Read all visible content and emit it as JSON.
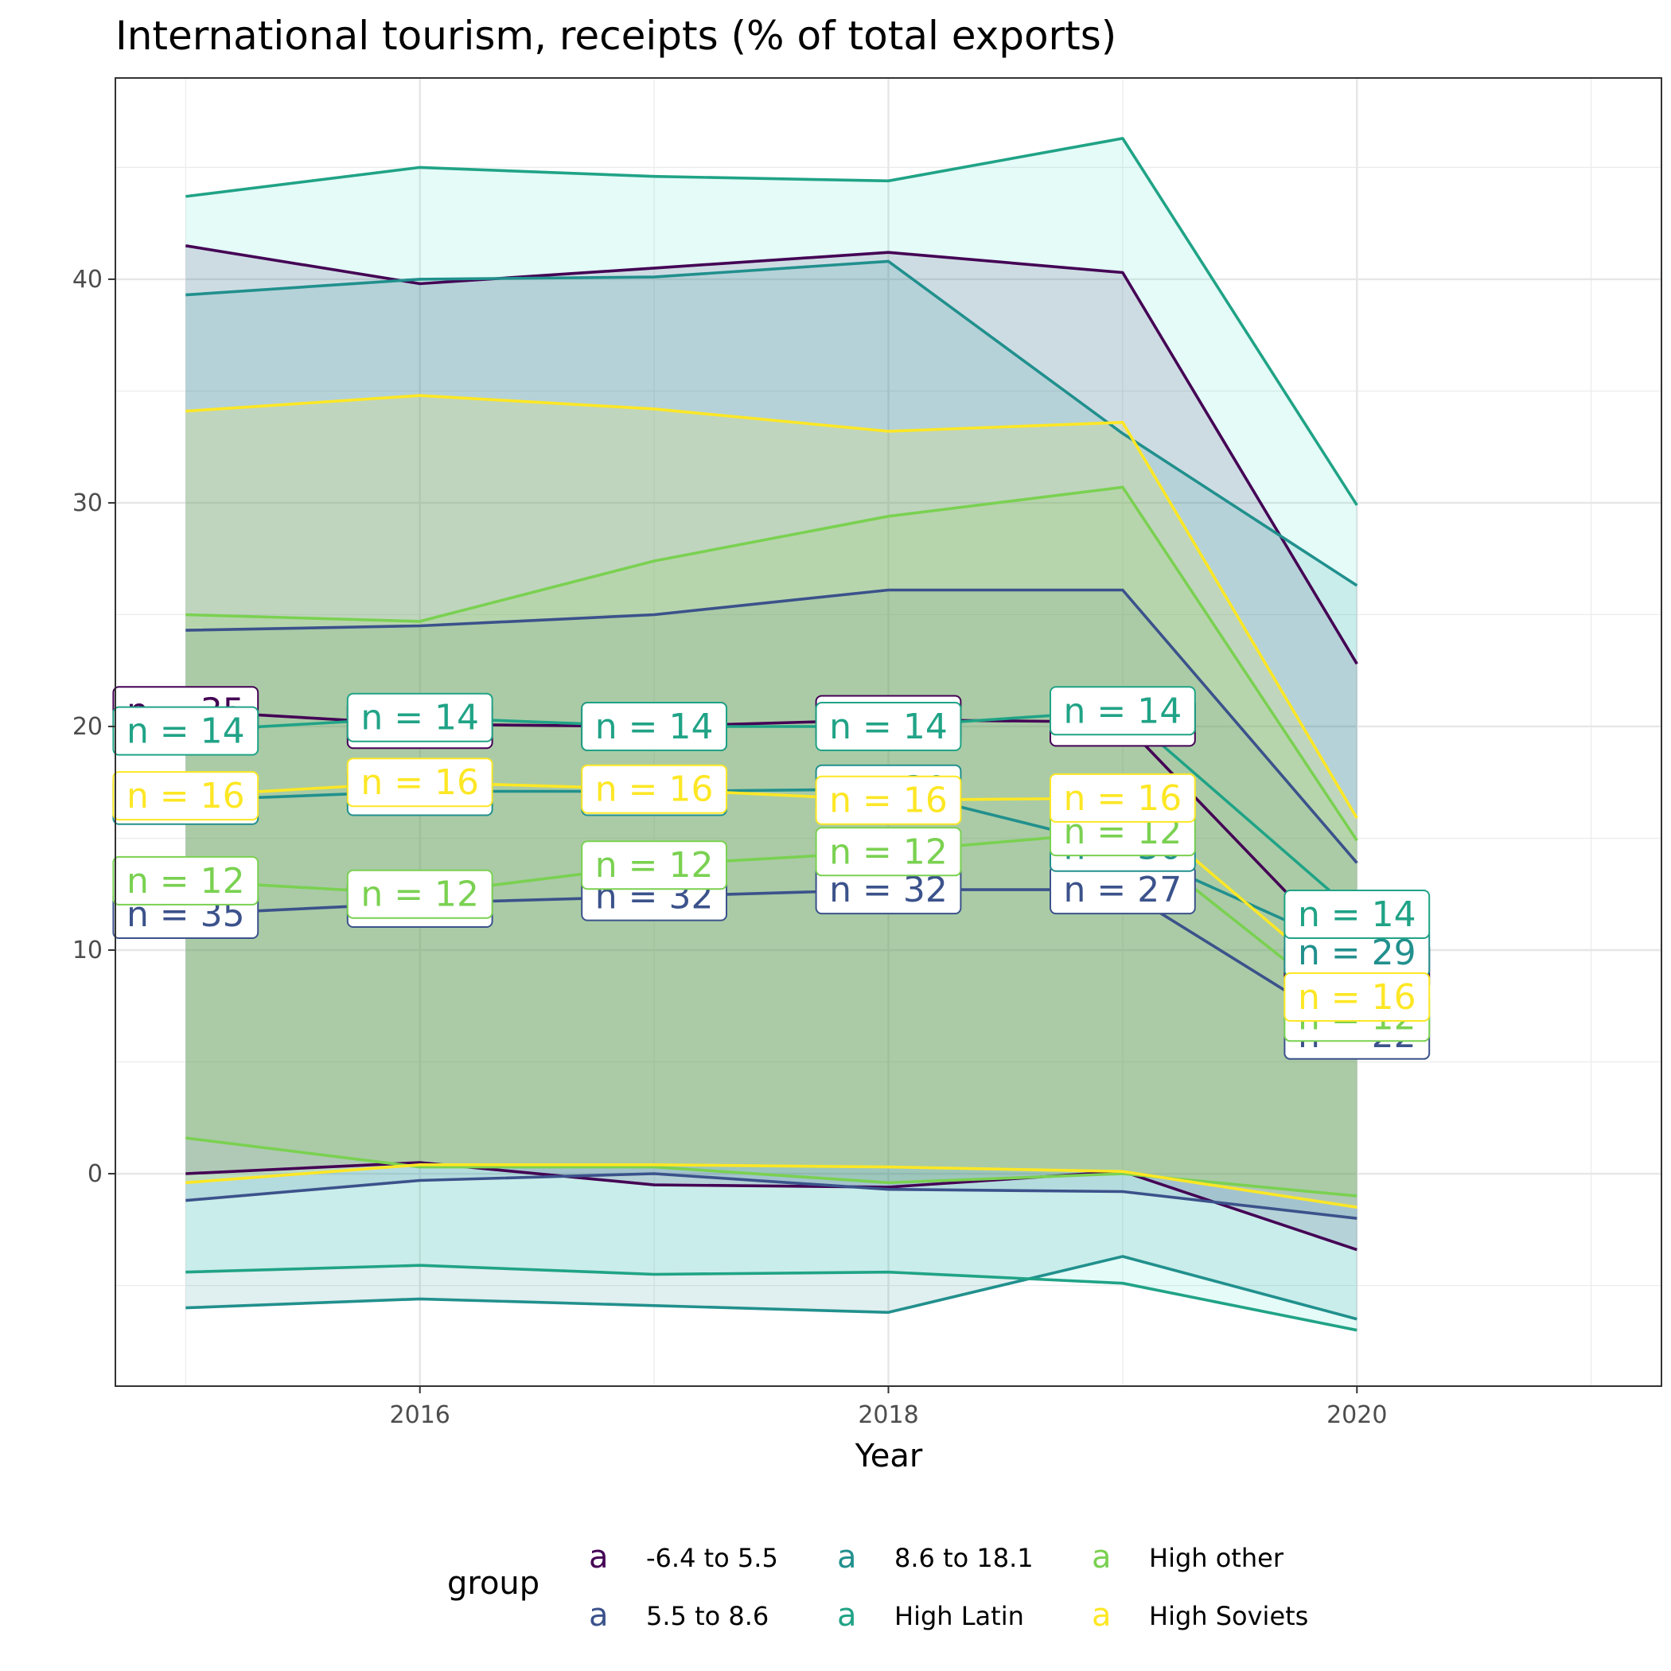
{
  "chart_data": {
    "type": "area",
    "title": "International tourism, receipts (% of total exports)",
    "xlabel": "Year",
    "ylabel": "",
    "xlim": [
      2014.7,
      2021.3
    ],
    "ylim": [
      -9.5,
      49
    ],
    "x_ticks": [
      2016,
      2018,
      2020
    ],
    "x_tick_labels": [
      "2016",
      "2018",
      "2020"
    ],
    "y_ticks": [
      0,
      10,
      20,
      30,
      40
    ],
    "y_tick_labels": [
      "0",
      "10",
      "20",
      "30",
      "40"
    ],
    "grid": true,
    "legend": {
      "title": "group",
      "position": "bottom",
      "key_glyph": "a"
    },
    "x": [
      2015,
      2016,
      2017,
      2018,
      2019,
      2020
    ],
    "series": [
      {
        "name": "-6.4 to 5.5",
        "color": "#440154",
        "fill": "#440154",
        "upper": [
          41.5,
          39.8,
          40.5,
          41.2,
          40.3,
          22.8
        ],
        "mean": [
          20.7,
          20.1,
          20.0,
          20.3,
          20.2,
          9.3
        ],
        "lower": [
          0.0,
          0.5,
          -0.5,
          -0.6,
          0.1,
          -3.4
        ],
        "n_labels": [
          "n = 35",
          "n = 35",
          "n = 34",
          "n = 34",
          "n = 35",
          "n = 29"
        ]
      },
      {
        "name": "5.5 to 8.6",
        "color": "#3b528b",
        "fill": "#3b528b",
        "upper": [
          24.3,
          24.5,
          25.0,
          26.1,
          26.1,
          13.9
        ],
        "mean": [
          11.6,
          12.1,
          12.4,
          12.7,
          12.7,
          6.2
        ],
        "lower": [
          -1.2,
          -0.3,
          0.0,
          -0.7,
          -0.8,
          -2.0
        ],
        "n_labels": [
          "n = 35",
          "n = 35",
          "n = 32",
          "n = 32",
          "n = 27",
          "n = 22"
        ]
      },
      {
        "name": "8.6 to 18.1",
        "color": "#21908d",
        "fill": "#21908d",
        "upper": [
          39.3,
          40.0,
          40.1,
          40.8,
          33.1,
          26.3
        ],
        "mean": [
          16.7,
          17.1,
          17.1,
          17.2,
          14.6,
          9.9
        ],
        "lower": [
          -6.0,
          -5.6,
          -5.9,
          -6.2,
          -3.7,
          -6.5
        ],
        "n_labels": [
          "n = 30",
          "n = 30",
          "n = 30",
          "n = 30",
          "n = 30",
          "n = 29"
        ]
      },
      {
        "name": "High Latin",
        "color": "#20a386",
        "fill": "#40e0d0",
        "upper": [
          43.7,
          45.0,
          44.6,
          44.4,
          46.3,
          29.9
        ],
        "mean": [
          19.8,
          20.4,
          20.0,
          20.0,
          20.7,
          11.6
        ],
        "lower": [
          -4.4,
          -4.1,
          -4.5,
          -4.4,
          -4.9,
          -7.0
        ],
        "n_labels": [
          "n = 14",
          "n = 14",
          "n = 14",
          "n = 14",
          "n = 14",
          "n = 14"
        ]
      },
      {
        "name": "High other",
        "color": "#7ad151",
        "fill": "#7ad151",
        "upper": [
          25.0,
          24.7,
          27.4,
          29.4,
          30.7,
          14.9
        ],
        "mean": [
          13.1,
          12.5,
          13.8,
          14.4,
          15.3,
          7.0
        ],
        "lower": [
          1.6,
          0.3,
          0.3,
          -0.4,
          0.0,
          -1.0
        ],
        "n_labels": [
          "n = 12",
          "n = 12",
          "n = 12",
          "n = 12",
          "n = 12",
          "n = 12"
        ]
      },
      {
        "name": "High Soviets",
        "color": "#fde725",
        "fill": "#fde725",
        "upper": [
          34.1,
          34.8,
          34.2,
          33.2,
          33.6,
          15.9
        ],
        "mean": [
          16.9,
          17.5,
          17.2,
          16.7,
          16.8,
          7.9
        ],
        "lower": [
          -0.4,
          0.4,
          0.4,
          0.3,
          0.1,
          -1.5
        ],
        "n_labels": [
          "n = 16",
          "n = 16",
          "n = 16",
          "n = 16",
          "n = 16",
          "n = 16"
        ]
      }
    ]
  }
}
